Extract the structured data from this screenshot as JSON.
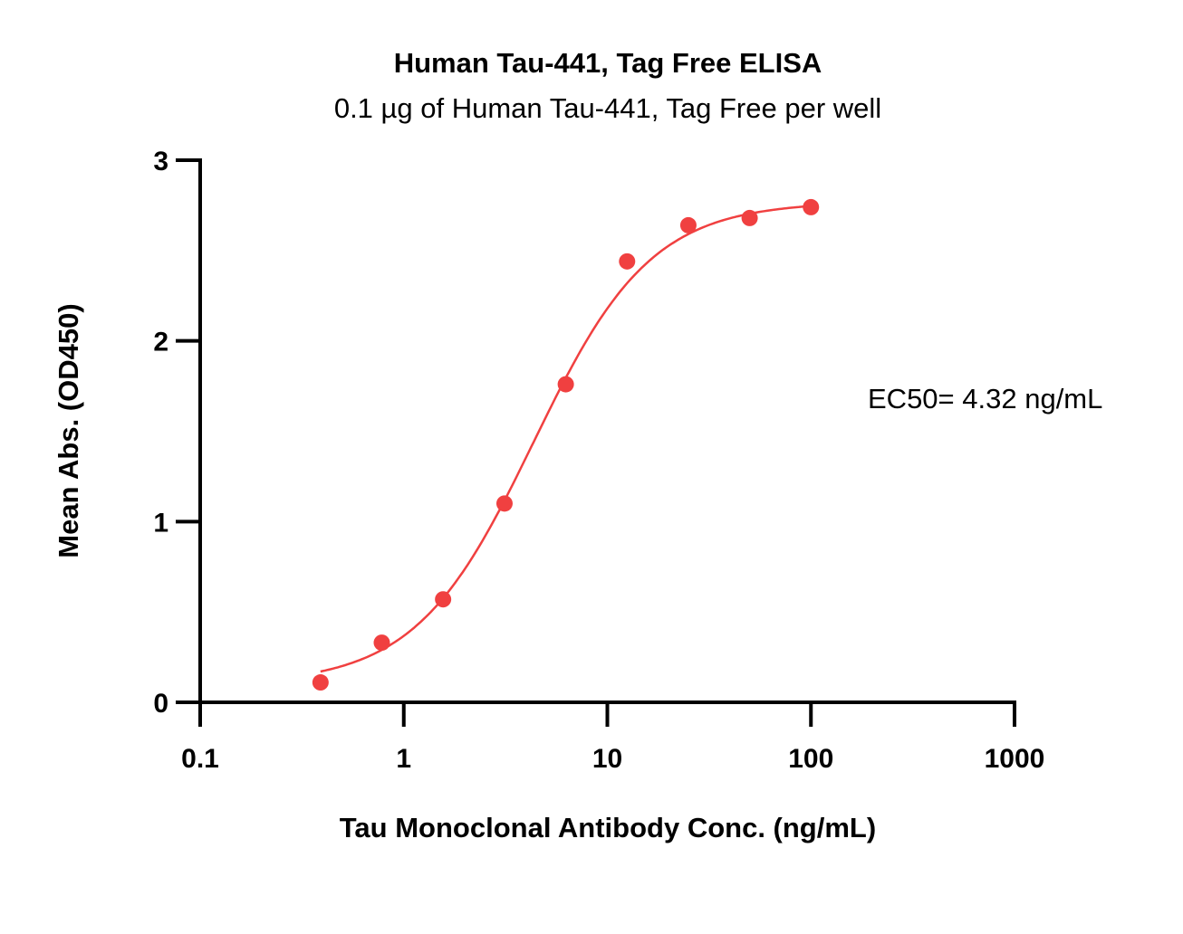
{
  "chart_data": {
    "type": "scatter",
    "title": "Human Tau-441, Tag Free ELISA",
    "subtitle": "0.1 µg of Human Tau-441, Tag Free per well",
    "xlabel": "Tau Monoclonal Antibody Conc. (ng/mL)",
    "ylabel": "Mean Abs. (OD450)",
    "xscale": "log",
    "xlim": [
      0.1,
      1000
    ],
    "ylim": [
      0,
      3
    ],
    "xticks": [
      "0.1",
      "1",
      "10",
      "100",
      "1000"
    ],
    "xtick_values": [
      0.1,
      1,
      10,
      100,
      1000
    ],
    "yticks": [
      "0",
      "1",
      "2",
      "3"
    ],
    "ytick_values": [
      0,
      1,
      2,
      3
    ],
    "grid": false,
    "series": [
      {
        "name": "Tau Monoclonal Antibody",
        "color": "#f04040",
        "x": [
          0.39,
          0.78,
          1.56,
          3.125,
          6.25,
          12.5,
          25,
          50,
          100
        ],
        "y": [
          0.11,
          0.33,
          0.57,
          1.1,
          1.76,
          2.44,
          2.64,
          2.68,
          2.74
        ],
        "fit": {
          "model": "4PL",
          "bottom": 0.1,
          "top": 2.77,
          "ec50": 4.32,
          "hill": 1.5
        }
      }
    ],
    "annotations": [
      "EC50= 4.32 ng/mL"
    ]
  }
}
